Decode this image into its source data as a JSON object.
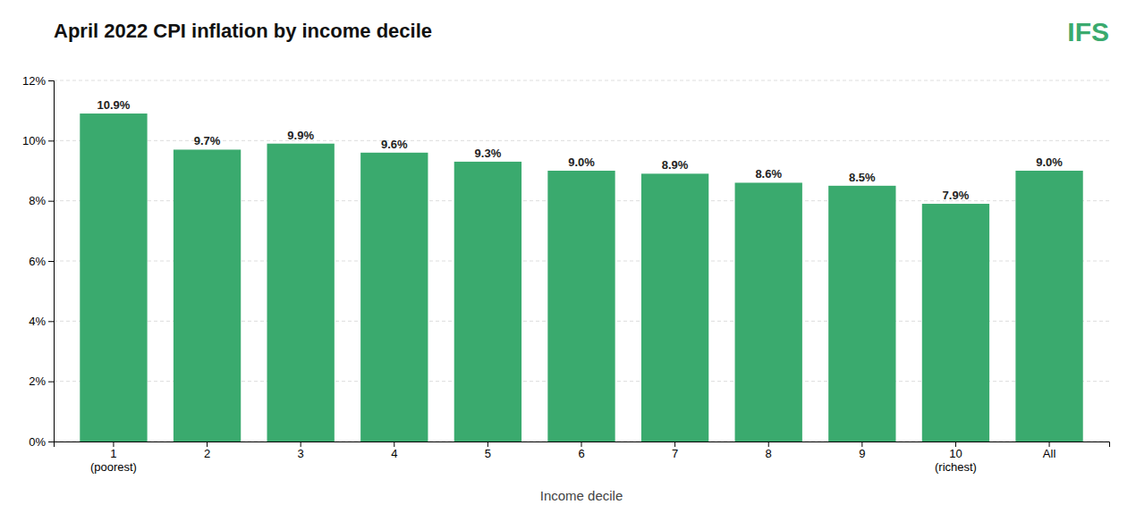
{
  "chart_data": {
    "type": "bar",
    "title": "April 2022 CPI inflation by income decile",
    "xlabel": "Income decile",
    "categories": [
      "1\n(poorest)",
      "2",
      "3",
      "4",
      "5",
      "6",
      "7",
      "8",
      "9",
      "10\n(richest)",
      "All"
    ],
    "values": [
      10.9,
      9.7,
      9.9,
      9.6,
      9.3,
      9.0,
      8.9,
      8.6,
      8.5,
      7.9,
      9.0
    ],
    "value_labels": [
      "10.9%",
      "9.7%",
      "9.9%",
      "9.6%",
      "9.3%",
      "9.0%",
      "8.9%",
      "8.6%",
      "8.5%",
      "7.9%",
      "9.0%"
    ],
    "data_labels": true,
    "color": "#3aaa6e",
    "ylim": [
      0,
      12
    ],
    "yticks": [
      {
        "value": 0,
        "label": "0%"
      },
      {
        "value": 2,
        "label": "2%"
      },
      {
        "value": 4,
        "label": "4%"
      },
      {
        "value": 6,
        "label": "6%"
      },
      {
        "value": 8,
        "label": "8%"
      },
      {
        "value": 10,
        "label": "10%"
      },
      {
        "value": 12,
        "label": "12%"
      }
    ],
    "grid": true,
    "annotations": [
      "IFS"
    ]
  }
}
